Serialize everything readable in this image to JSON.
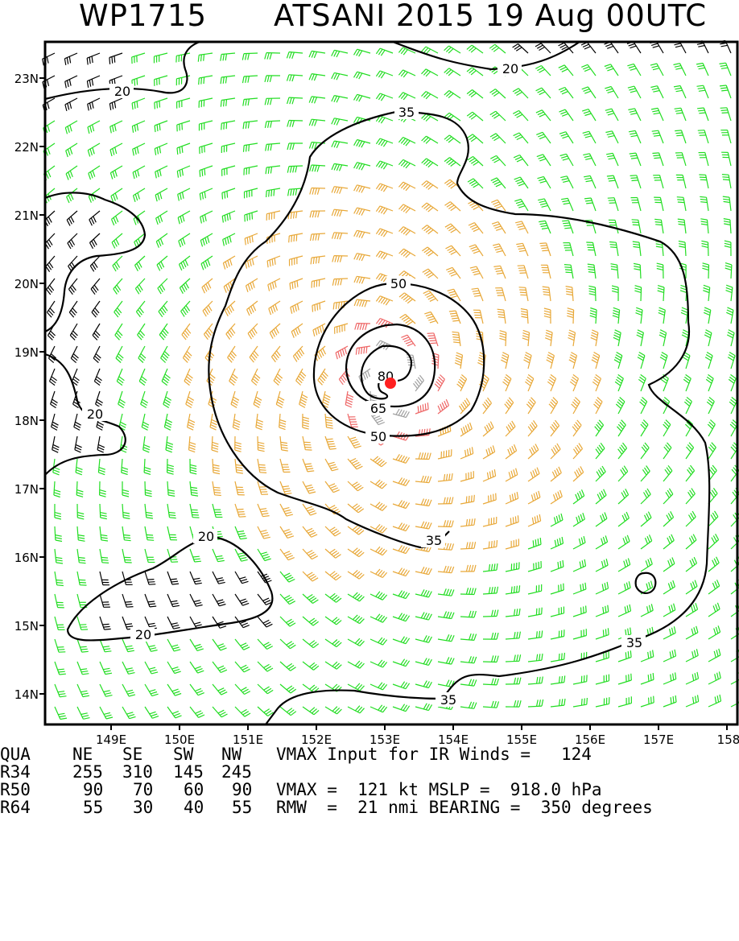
{
  "title": {
    "storm_id": "WP1715",
    "storm_info": "ATSANI 2015 19 Aug 00UTC"
  },
  "axes": {
    "lon_labels": [
      "149E",
      "150E",
      "151E",
      "152E",
      "153E",
      "154E",
      "155E",
      "156E",
      "157E",
      "158"
    ],
    "lat_labels": [
      "23N",
      "22N",
      "21N",
      "20N",
      "19N",
      "18N",
      "17N",
      "16N",
      "15N",
      "14N"
    ]
  },
  "contour_labels": [
    "20",
    "20",
    "20",
    "20",
    "20",
    "35",
    "35",
    "35",
    "35",
    "50",
    "50",
    "65",
    "80"
  ],
  "storm_center": {
    "lon": 153.1,
    "lat": 18.55,
    "color": "#ff2020"
  },
  "wind_colors": {
    "lt34": "#000000",
    "r34": "#22dd22",
    "r50": "#e8a838",
    "r64": "#ee6666",
    "core": "#a0a0a0"
  },
  "table": {
    "header": [
      "QUA",
      "NE",
      "SE",
      "SW",
      "NW"
    ],
    "rows": [
      {
        "name": "R34",
        "values": [
          "255",
          "310",
          "145",
          "245"
        ]
      },
      {
        "name": "R50",
        "values": [
          "90",
          "70",
          "60",
          "90"
        ]
      },
      {
        "name": "R64",
        "values": [
          "55",
          "30",
          "40",
          "55"
        ]
      }
    ]
  },
  "summary": {
    "ir_line": "VMAX Input for IR Winds =   124",
    "vmax_line": "VMAX =  121 kt MSLP =  918.0 hPa",
    "rmw_line": "RMW  =  21 nmi BEARING =  350 degrees"
  }
}
